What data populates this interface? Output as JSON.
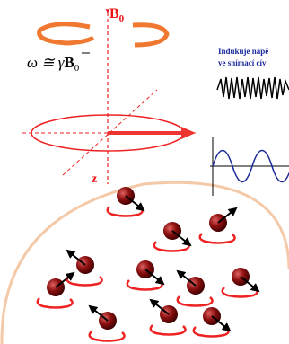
{
  "field_label": {
    "main": "B",
    "sub": "0"
  },
  "formula": {
    "lhs": "ω ≅ γ",
    "vector": "B",
    "sub": "0"
  },
  "caption": {
    "line1": "Indukuje napě",
    "line2": "ve snímací cív"
  },
  "axis_label": "z"
}
